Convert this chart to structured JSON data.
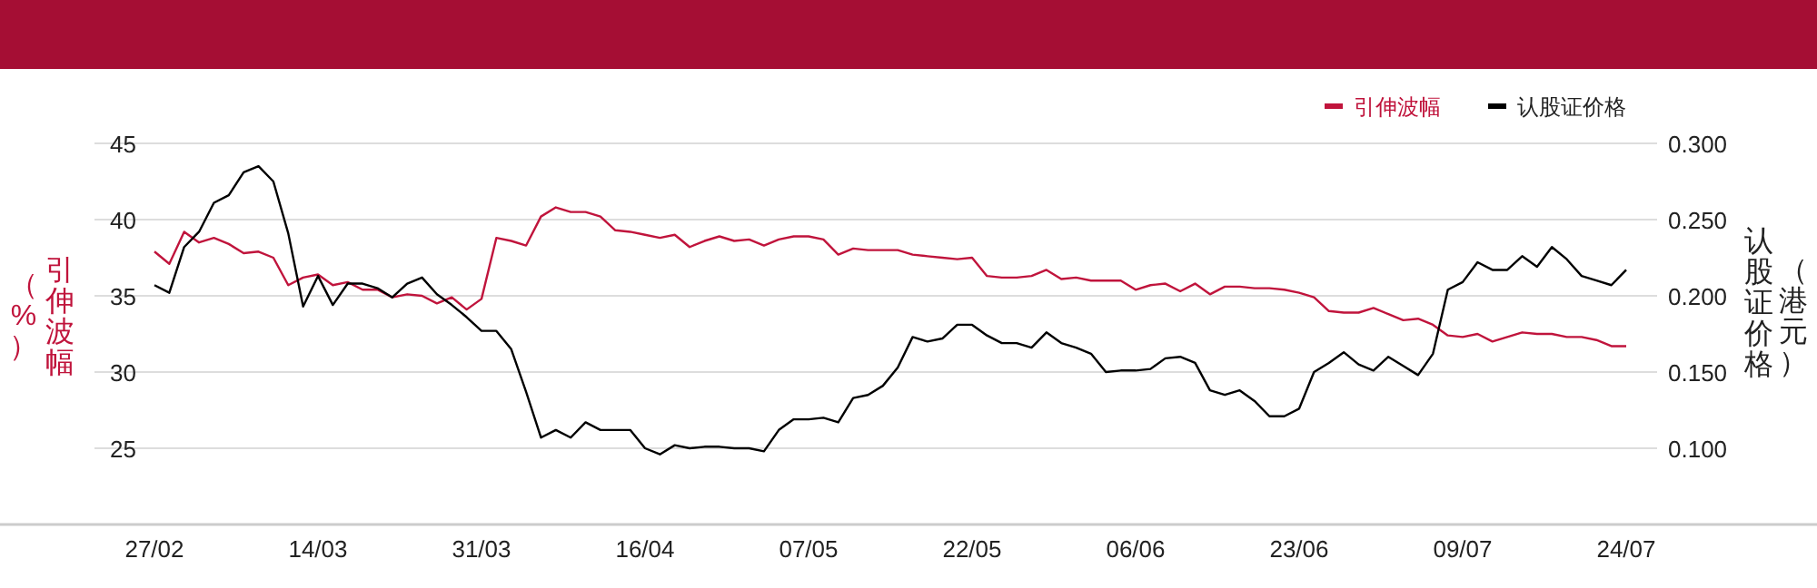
{
  "chart_data": {
    "type": "line",
    "ylabel": "引伸波幅（%）",
    "y2label": "认股证价格（港元）",
    "categories": [
      "27/02",
      null,
      null,
      null,
      null,
      null,
      null,
      null,
      null,
      null,
      null,
      "14/03",
      null,
      null,
      null,
      null,
      null,
      null,
      null,
      null,
      null,
      null,
      "31/03",
      null,
      null,
      null,
      null,
      null,
      null,
      null,
      null,
      null,
      null,
      "16/04",
      null,
      null,
      null,
      null,
      null,
      null,
      null,
      null,
      null,
      null,
      "07/05",
      null,
      null,
      null,
      null,
      null,
      null,
      null,
      null,
      null,
      null,
      "22/05",
      null,
      null,
      null,
      null,
      null,
      null,
      null,
      null,
      null,
      null,
      "06/06",
      null,
      null,
      null,
      null,
      null,
      null,
      null,
      null,
      null,
      null,
      "23/06",
      null,
      null,
      null,
      null,
      null,
      null,
      null,
      null,
      null,
      null,
      "09/07",
      null,
      null,
      null,
      null,
      null,
      null,
      null,
      null,
      null,
      null,
      "24/07"
    ],
    "series": [
      {
        "name": "引伸波幅",
        "color": "#c0143c",
        "values": [
          37.9,
          37.1,
          39.2,
          38.5,
          38.8,
          38.4,
          37.8,
          37.9,
          37.5,
          35.7,
          36.2,
          36.4,
          35.7,
          35.9,
          35.4,
          35.4,
          34.9,
          35.1,
          35.0,
          34.5,
          34.9,
          34.1,
          34.8,
          38.8,
          38.6,
          38.3,
          40.2,
          40.8,
          40.5,
          40.5,
          40.2,
          39.3,
          39.2,
          39.0,
          38.8,
          39.0,
          38.2,
          38.6,
          38.9,
          38.6,
          38.7,
          38.3,
          38.7,
          38.9,
          38.9,
          38.7,
          37.7,
          38.1,
          38.0,
          38.0,
          38.0,
          37.7,
          37.6,
          37.5,
          37.4,
          37.5,
          36.3,
          36.2,
          36.2,
          36.3,
          36.7,
          36.1,
          36.2,
          36.0,
          36.0,
          36.0,
          35.4,
          35.7,
          35.8,
          35.3,
          35.8,
          35.1,
          35.6,
          35.6,
          35.5,
          35.5,
          35.4,
          35.2,
          34.9,
          34.0,
          33.9,
          33.9,
          34.2,
          33.8,
          33.4,
          33.5,
          33.1,
          32.4,
          32.3,
          32.5,
          32.0,
          32.3,
          32.6,
          32.5,
          32.5,
          32.3,
          32.3,
          32.1,
          31.7,
          31.7
        ]
      },
      {
        "name": "认股证价格",
        "color": "#000000",
        "axis": "y2",
        "values": [
          0.207,
          0.202,
          0.232,
          0.242,
          0.261,
          0.266,
          0.281,
          0.285,
          0.275,
          0.241,
          0.193,
          0.213,
          0.194,
          0.208,
          0.208,
          0.205,
          0.199,
          0.208,
          0.212,
          0.201,
          0.194,
          0.186,
          0.177,
          0.177,
          0.165,
          0.137,
          0.107,
          0.112,
          0.107,
          0.117,
          0.112,
          0.112,
          0.112,
          0.1,
          0.096,
          0.102,
          0.1,
          0.101,
          0.101,
          0.1,
          0.1,
          0.098,
          0.112,
          0.119,
          0.119,
          0.12,
          0.117,
          0.133,
          0.135,
          0.141,
          0.153,
          0.173,
          0.17,
          0.172,
          0.181,
          0.181,
          0.174,
          0.169,
          0.169,
          0.166,
          0.176,
          0.169,
          0.166,
          0.162,
          0.15,
          0.151,
          0.151,
          0.152,
          0.159,
          0.16,
          0.156,
          0.138,
          0.135,
          0.138,
          0.131,
          0.121,
          0.121,
          0.126,
          0.15,
          0.156,
          0.163,
          0.155,
          0.151,
          0.16,
          0.154,
          0.148,
          0.162,
          0.204,
          0.209,
          0.222,
          0.217,
          0.217,
          0.226,
          0.219,
          0.232,
          0.224,
          0.213,
          0.21,
          0.207,
          0.217
        ]
      }
    ],
    "ylim": [
      20,
      45
    ],
    "yticks": [
      25,
      30,
      35,
      40,
      45
    ],
    "y2lim": [
      0.05,
      0.3
    ],
    "y2ticks": [
      {
        "value": 0.1,
        "label": "0.100"
      },
      {
        "value": 0.15,
        "label": "0.150"
      },
      {
        "value": 0.2,
        "label": "0.200"
      },
      {
        "value": 0.25,
        "label": "0.250"
      },
      {
        "value": 0.3,
        "label": "0.300"
      }
    ],
    "grid": "y",
    "legend": "top right"
  }
}
